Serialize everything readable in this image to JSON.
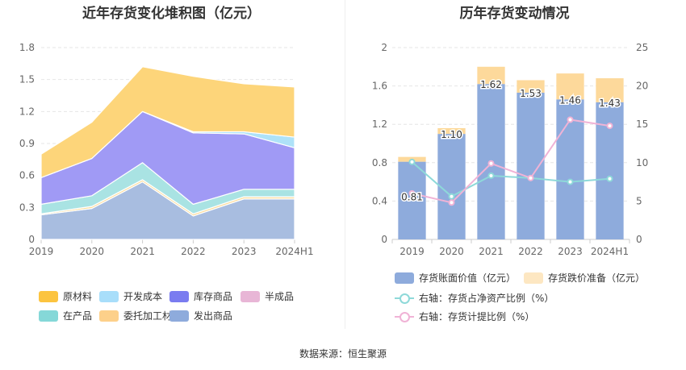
{
  "source": "数据来源：恒生聚源",
  "chart_data": [
    {
      "type": "area",
      "title": "近年存货变化堆积图（亿元）",
      "categories": [
        "2019",
        "2020",
        "2021",
        "2022",
        "2023",
        "2024H1"
      ],
      "ylim": [
        0,
        1.8
      ],
      "yticks": [
        "0",
        "0.3",
        "0.6",
        "0.9",
        "1.2",
        "1.5",
        "1.8"
      ],
      "series": [
        {
          "name": "发出商品",
          "color": "#a8bde0",
          "values": [
            0.23,
            0.29,
            0.54,
            0.22,
            0.38,
            0.38
          ]
        },
        {
          "name": "委托加工材料",
          "color": "#fddc9a",
          "values": [
            0.01,
            0.02,
            0.02,
            0.02,
            0.02,
            0.02
          ]
        },
        {
          "name": "半成品",
          "color": "#e8b6d6",
          "values": [
            0.0,
            0.0,
            0.0,
            0.0,
            0.0,
            0.0
          ]
        },
        {
          "name": "在产品",
          "color": "#a9e3e3",
          "values": [
            0.09,
            0.1,
            0.16,
            0.09,
            0.07,
            0.07
          ]
        },
        {
          "name": "库存商品",
          "color": "#a09af5",
          "values": [
            0.25,
            0.35,
            0.48,
            0.67,
            0.52,
            0.39
          ]
        },
        {
          "name": "开发成本",
          "color": "#aee2f8",
          "values": [
            0.0,
            0.0,
            0.0,
            0.01,
            0.02,
            0.1
          ]
        },
        {
          "name": "原材料",
          "color": "#fdd57a",
          "values": [
            0.22,
            0.34,
            0.42,
            0.52,
            0.45,
            0.47
          ]
        }
      ],
      "legend": [
        {
          "name": "原材料",
          "color": "#fcc440"
        },
        {
          "name": "开发成本",
          "color": "#a8defa"
        },
        {
          "name": "库存商品",
          "color": "#7a7cf0"
        },
        {
          "name": "半成品",
          "color": "#e8b6d6"
        },
        {
          "name": "在产品",
          "color": "#85d8d8"
        },
        {
          "name": "委托加工材料",
          "color": "#fdd08a"
        },
        {
          "name": "发出商品",
          "color": "#8eabdc"
        }
      ]
    },
    {
      "type": "bar",
      "title": "历年存货变动情况",
      "categories": [
        "2019",
        "2020",
        "2021",
        "2022",
        "2023",
        "2024H1"
      ],
      "ylim": [
        0,
        2
      ],
      "yticks": [
        "0",
        "0.4",
        "0.8",
        "1.2",
        "1.6",
        "2"
      ],
      "y2lim": [
        0,
        25
      ],
      "y2ticks": [
        "0",
        "5",
        "10",
        "15",
        "20",
        "25"
      ],
      "series": [
        {
          "name": "存货账面价值（亿元）",
          "color": "#8eabdc",
          "values": [
            0.81,
            1.1,
            1.62,
            1.53,
            1.46,
            1.43
          ]
        },
        {
          "name": "存货跌价准备（亿元）",
          "color": "#fdd99b",
          "values": [
            0.05,
            0.06,
            0.18,
            0.13,
            0.27,
            0.25
          ]
        }
      ],
      "labels": [
        "0.81",
        "1.10",
        "1.62",
        "1.53",
        "1.46",
        "1.43"
      ],
      "lines": [
        {
          "name": "右轴：存货占净资产比例（%）",
          "color": "#8ed9d9",
          "values": [
            10.1,
            5.6,
            8.3,
            8.0,
            7.5,
            7.9
          ]
        },
        {
          "name": "右轴：存货计提比例（%）",
          "color": "#f0b3d6",
          "values": [
            6.0,
            4.8,
            9.9,
            8.0,
            15.6,
            14.8
          ]
        }
      ]
    }
  ]
}
